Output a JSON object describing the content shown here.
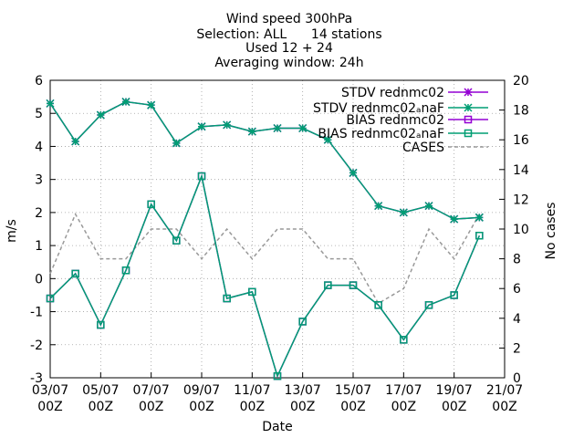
{
  "chart_data": {
    "type": "line",
    "title_lines": [
      "Wind speed 300hPa",
      "Selection: ALL      14 stations",
      "Used 12 + 24",
      "Averaging window: 24h"
    ],
    "xlabel": "Date",
    "ylabel": "m/s",
    "y2label": "No cases",
    "x_ticks": [
      {
        "day": 3,
        "l1": "03/07",
        "l2": "00Z"
      },
      {
        "day": 5,
        "l1": "05/07",
        "l2": "00Z"
      },
      {
        "day": 7,
        "l1": "07/07",
        "l2": "00Z"
      },
      {
        "day": 9,
        "l1": "09/07",
        "l2": "00Z"
      },
      {
        "day": 11,
        "l1": "11/07",
        "l2": "00Z"
      },
      {
        "day": 13,
        "l1": "13/07",
        "l2": "00Z"
      },
      {
        "day": 15,
        "l1": "15/07",
        "l2": "00Z"
      },
      {
        "day": 17,
        "l1": "17/07",
        "l2": "00Z"
      },
      {
        "day": 19,
        "l1": "19/07",
        "l2": "00Z"
      },
      {
        "day": 21,
        "l1": "21/07",
        "l2": "00Z"
      }
    ],
    "xlim": [
      3,
      21
    ],
    "ylim": [
      -3,
      6
    ],
    "y2lim": [
      0,
      20
    ],
    "y_ticks": [
      "-3",
      "-2",
      "-1",
      "0",
      "1",
      "2",
      "3",
      "4",
      "5",
      "6"
    ],
    "y2_ticks": [
      "0",
      "2",
      "4",
      "6",
      "8",
      "10",
      "12",
      "14",
      "16",
      "18",
      "20"
    ],
    "grid": true,
    "legend_position": "top-right",
    "x": [
      3,
      4,
      5,
      6,
      7,
      8,
      9,
      10,
      11,
      12,
      13,
      14,
      15,
      16,
      17,
      18,
      19,
      20
    ],
    "series": [
      {
        "name": "STDV rednmc02",
        "axis": "y1",
        "marker": "star",
        "color": "#9400d3",
        "dash": false,
        "values": [
          5.3,
          4.15,
          4.95,
          5.35,
          5.25,
          4.1,
          4.6,
          4.65,
          4.45,
          4.55,
          4.55,
          4.2,
          3.2,
          2.2,
          2.0,
          2.2,
          1.8,
          1.85
        ]
      },
      {
        "name": "STDV rednmc02ₐnaF",
        "axis": "y1",
        "marker": "star",
        "color": "#009e73",
        "dash": false,
        "values": [
          5.3,
          4.15,
          4.95,
          5.35,
          5.25,
          4.1,
          4.6,
          4.65,
          4.45,
          4.55,
          4.55,
          4.2,
          3.2,
          2.2,
          2.0,
          2.2,
          1.8,
          1.85
        ]
      },
      {
        "name": "BIAS rednmc02",
        "axis": "y1",
        "marker": "square",
        "color": "#9400d3",
        "dash": false,
        "values": [
          -0.6,
          0.15,
          -1.4,
          0.25,
          2.25,
          1.15,
          3.1,
          -0.6,
          -0.4,
          -2.95,
          -1.3,
          -0.2,
          -0.2,
          -0.8,
          -1.85,
          -0.8,
          -0.5,
          1.3
        ]
      },
      {
        "name": "BIAS rednmc02ₐnaF",
        "axis": "y1",
        "marker": "square",
        "color": "#009e73",
        "dash": false,
        "values": [
          -0.6,
          0.15,
          -1.4,
          0.25,
          2.25,
          1.15,
          3.1,
          -0.6,
          -0.4,
          -2.95,
          -1.3,
          -0.2,
          -0.2,
          -0.8,
          -1.85,
          -0.8,
          -0.5,
          1.3
        ]
      },
      {
        "name": "CASES",
        "axis": "y2",
        "marker": "none",
        "color": "#999999",
        "dash": true,
        "values": [
          7,
          11,
          8,
          8,
          10,
          10,
          8,
          10,
          8,
          10,
          10,
          8,
          8,
          5,
          6,
          10,
          8,
          11
        ]
      }
    ]
  }
}
